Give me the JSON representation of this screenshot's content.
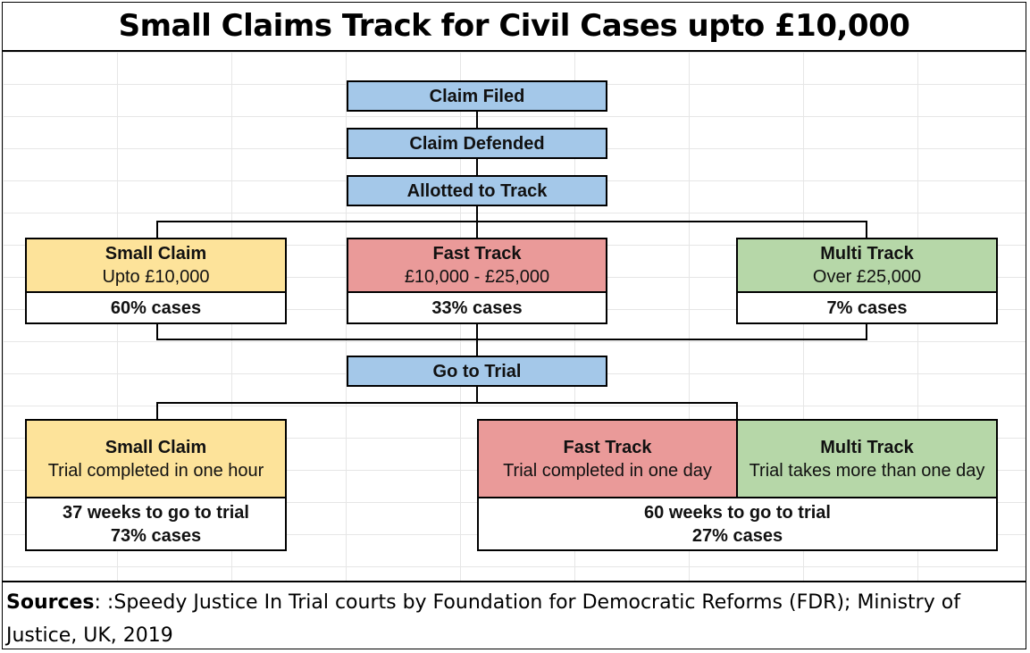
{
  "title": "Small Claims Track for Civil Cases upto £10,000",
  "flow": {
    "claim_filed": "Claim Filed",
    "claim_defended": "Claim Defended",
    "allotted_to_track": "Allotted to Track",
    "go_to_trial": "Go to Trial"
  },
  "tracks": {
    "small": {
      "name": "Small Claim",
      "range": "Upto £10,000",
      "share": "60% cases",
      "color": "#fde39a"
    },
    "fast": {
      "name": "Fast Track",
      "range": "£10,000 - £25,000",
      "share": "33% cases",
      "color": "#ea9a99"
    },
    "multi": {
      "name": "Multi Track",
      "range": "Over £25,000",
      "share": "7% cases",
      "color": "#b6d7a8"
    }
  },
  "trial": {
    "small": {
      "name": "Small Claim",
      "desc": "Trial completed in one hour",
      "weeks": "37 weeks to go to trial",
      "share": "73% cases"
    },
    "fast": {
      "name": "Fast Track",
      "desc": "Trial completed in one day"
    },
    "multi": {
      "name": "Multi Track",
      "desc": "Trial takes more than one day"
    },
    "fast_multi": {
      "weeks": "60 weeks to go to trial",
      "share": "27% cases"
    }
  },
  "sources": {
    "label": "Sources",
    "text": ": :Speedy Justice In Trial courts by Foundation for Democratic Reforms (FDR); Ministry of Justice, UK, 2019"
  },
  "colors": {
    "flow_blue": "#a4c8e9",
    "border": "#000000"
  }
}
